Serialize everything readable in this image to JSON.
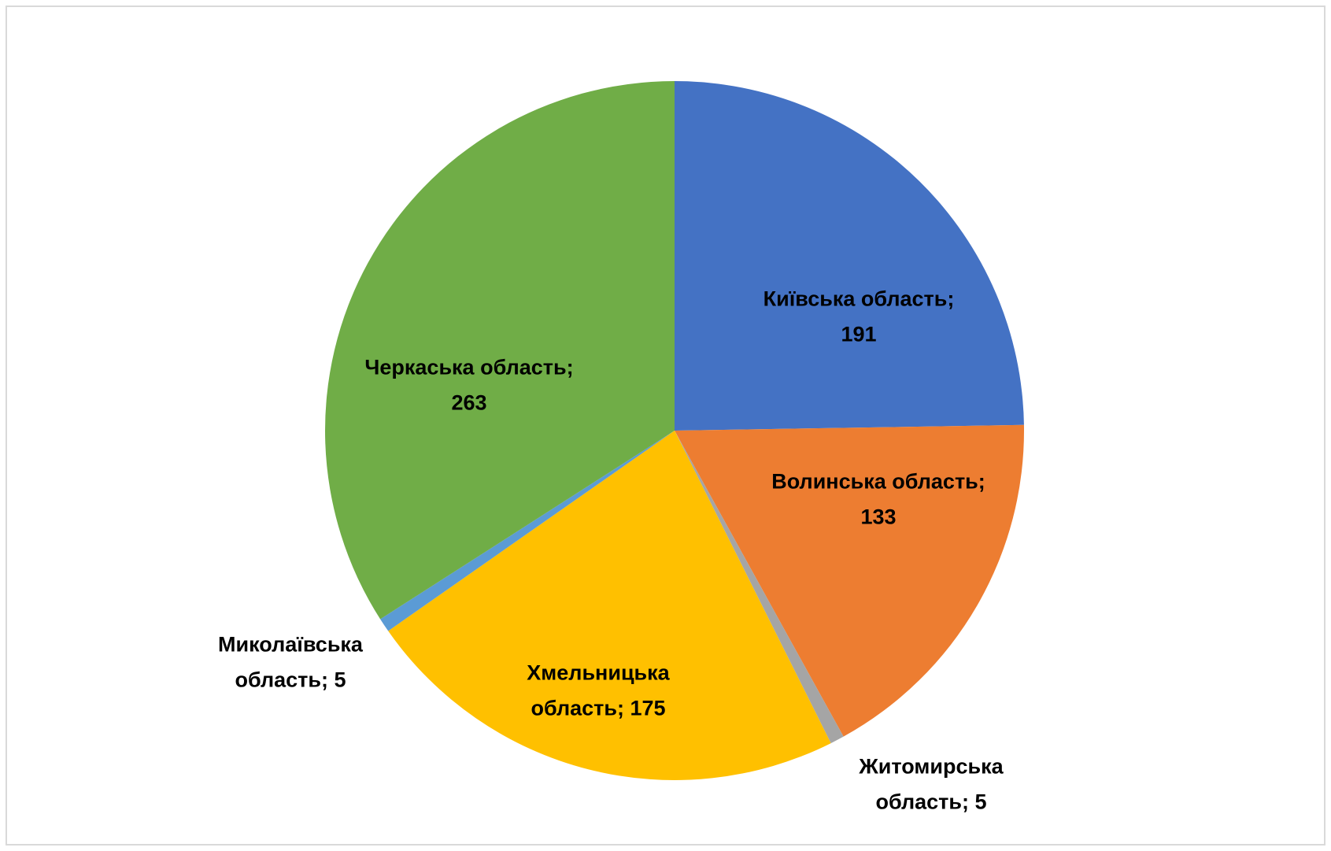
{
  "chart_data": {
    "type": "pie",
    "values": [
      191,
      133,
      5,
      175,
      5,
      263
    ],
    "value_labels": [
      "Київська область; 191",
      "Волинська область; 133",
      "Житомирська область; 5",
      "Хмельницька область; 175",
      "Миколаївська область; 5",
      "Черкаська область; 263"
    ],
    "colors": [
      "#4472c4",
      "#ed7d31",
      "#a5a5a5",
      "#ffc000",
      "#5b9bd5",
      "#70ad47"
    ]
  }
}
